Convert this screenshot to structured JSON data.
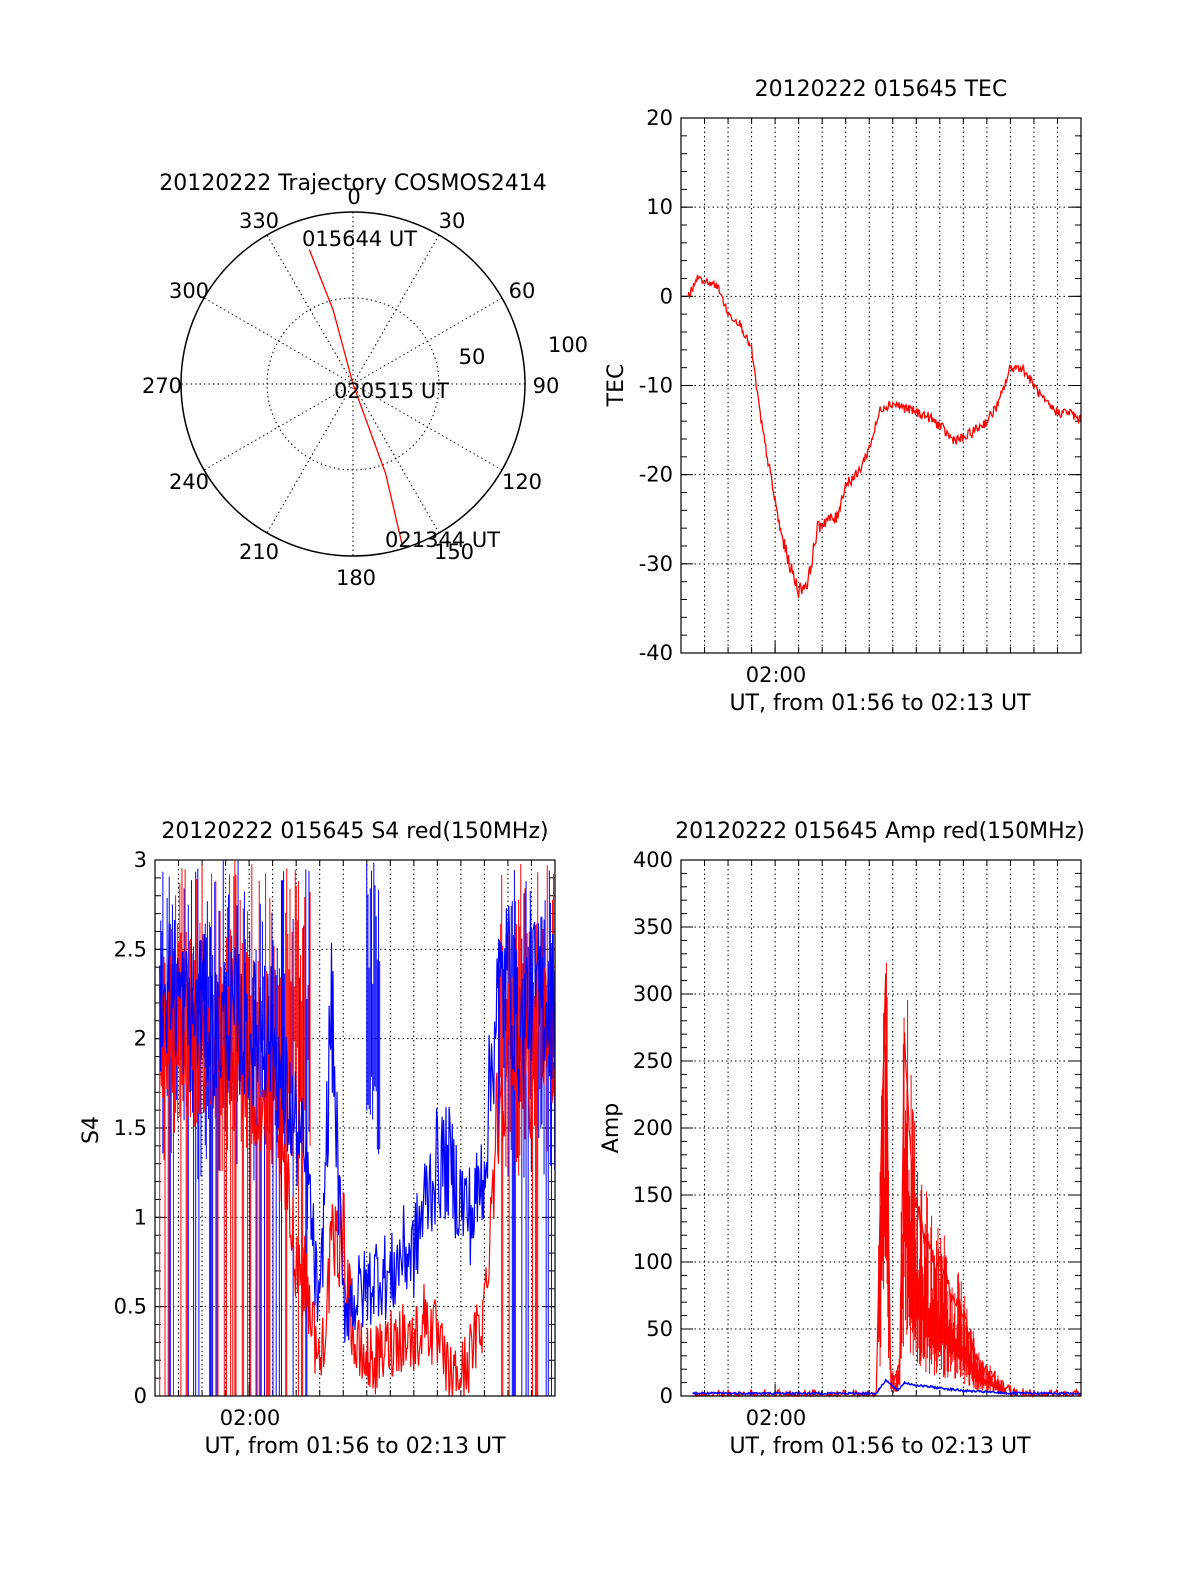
{
  "chart_data": [
    {
      "type": "polar",
      "title": "20120222 Trajectory COSMOS2414",
      "azimuth_labels": [
        "0",
        "30",
        "60",
        "90",
        "120",
        "150",
        "180",
        "210",
        "240",
        "270",
        "300",
        "330"
      ],
      "radial_labels": [
        "50",
        "100"
      ],
      "track": {
        "color": "#ff0000",
        "points": [
          {
            "az": 342,
            "r": 74
          },
          {
            "az": 345,
            "r": 40
          },
          {
            "az": 0,
            "r": 0
          },
          {
            "az": 160,
            "r": 50
          },
          {
            "az": 163,
            "r": 88
          }
        ]
      },
      "annotations": [
        "015644 UT",
        "020515 UT",
        "021344 UT"
      ]
    },
    {
      "type": "line",
      "title": "20120222 015645 TEC",
      "xlabel": "UT, from 01:56 to 02:13 UT",
      "ylabel": "TEC",
      "xlim": [
        0,
        17
      ],
      "ylim": [
        -40,
        20
      ],
      "yticks": [
        "20",
        "10",
        "0",
        "-10",
        "-20",
        "-30",
        "-40"
      ],
      "xtick_label": "02:00",
      "series": [
        {
          "color": "#ff0000",
          "x": [
            0.3,
            0.7,
            1.2,
            1.6,
            2.0,
            2.5,
            3.0,
            3.4,
            3.8,
            4.2,
            4.6,
            5.0,
            5.4,
            5.8,
            6.2,
            6.6,
            7.0,
            7.5,
            8.0,
            8.5,
            9.0,
            9.5,
            10.0,
            10.5,
            11.0,
            11.5,
            12.0,
            12.5,
            13.0,
            13.5,
            14.0,
            14.5,
            15.0,
            15.5,
            16.0,
            16.5,
            17.0
          ],
          "y": [
            0,
            2,
            1.5,
            1,
            -2,
            -3,
            -6,
            -14,
            -20,
            -26,
            -30,
            -33,
            -32,
            -26,
            -25,
            -25,
            -21,
            -20,
            -17,
            -12.5,
            -12,
            -12.5,
            -13,
            -13.5,
            -14.5,
            -16,
            -16,
            -15,
            -14,
            -12,
            -8,
            -8,
            -10,
            -12,
            -13,
            -13,
            -14
          ]
        }
      ]
    },
    {
      "type": "line",
      "title": "20120222 015645 S4 red(150MHz)",
      "xlabel": "UT, from 01:56 to 02:13 UT",
      "ylabel": "S4",
      "xlim": [
        0,
        17
      ],
      "ylim": [
        0,
        3
      ],
      "yticks": [
        "3",
        "2.5",
        "2",
        "1.5",
        "1",
        "0.5",
        "0"
      ],
      "xtick_label": "02:00",
      "series": [
        {
          "color": "#ff0000",
          "x": [
            0.2,
            0.8,
            1.5,
            2.0,
            2.5,
            3.0,
            3.5,
            4.0,
            4.5,
            5.0,
            5.5,
            6.0,
            6.5,
            7.0,
            7.5,
            8.0,
            8.5,
            9.0,
            9.5,
            10.0,
            10.5,
            11.0,
            11.5,
            12.0,
            12.5,
            13.0,
            13.5,
            14.0,
            14.5,
            15.0,
            15.5,
            16.0,
            16.5,
            17.0
          ],
          "y": [
            2.0,
            2.1,
            1.9,
            2.0,
            1.9,
            2.0,
            1.8,
            1.8,
            1.6,
            1.6,
            1.2,
            0.8,
            0.6,
            0.15,
            0.8,
            0.9,
            0.25,
            0.2,
            0.2,
            0.3,
            0.35,
            0.3,
            0.45,
            0.3,
            0.1,
            0.12,
            0.25,
            0.5,
            1.5,
            2.0,
            2.0,
            1.8,
            2.0,
            2.0
          ]
        },
        {
          "color": "#0000ff",
          "x": [
            0.2,
            0.8,
            1.5,
            2.0,
            2.5,
            3.0,
            3.5,
            4.0,
            4.5,
            5.0,
            5.5,
            6.0,
            6.5,
            7.0,
            7.5,
            8.0,
            8.5,
            9.0,
            9.5,
            10.0,
            10.5,
            11.0,
            11.5,
            12.0,
            12.5,
            13.0,
            13.5,
            14.0,
            14.5,
            15.0,
            15.5,
            16.0,
            16.5,
            17.0
          ],
          "y": [
            2.2,
            2.3,
            2.1,
            2.2,
            2.0,
            2.1,
            2.1,
            2.0,
            2.1,
            2.0,
            1.7,
            1.5,
            1.2,
            0.4,
            2.2,
            0.5,
            0.55,
            0.6,
            0.7,
            0.65,
            0.8,
            0.8,
            1.1,
            1.3,
            1.3,
            1.1,
            1.0,
            1.3,
            2.2,
            2.4,
            2.0,
            2.3,
            2.2,
            2.2
          ]
        }
      ]
    },
    {
      "type": "line",
      "title": "20120222 015645 Amp red(150MHz)",
      "xlabel": "UT, from 01:56 to 02:13 UT",
      "ylabel": "Amp",
      "xlim": [
        0,
        17
      ],
      "ylim": [
        0,
        400
      ],
      "yticks": [
        "400",
        "350",
        "300",
        "250",
        "200",
        "150",
        "100",
        "50",
        "0"
      ],
      "xtick_label": "02:00",
      "series": [
        {
          "color": "#ff0000",
          "x": [
            0.5,
            8.3,
            8.5,
            8.7,
            8.9,
            9.1,
            9.3,
            9.5,
            9.7,
            9.9,
            10.2,
            10.5,
            10.8,
            11.1,
            11.4,
            11.7,
            12.0,
            12.3,
            12.6,
            13.0,
            13.3,
            13.6,
            14.0,
            14.5,
            15.0,
            17.0
          ],
          "y": [
            0,
            0,
            180,
            310,
            20,
            10,
            25,
            280,
            190,
            150,
            130,
            110,
            100,
            95,
            80,
            70,
            60,
            45,
            25,
            18,
            15,
            8,
            3,
            1,
            0,
            0
          ]
        },
        {
          "color": "#0000ff",
          "x": [
            0.5,
            4.0,
            8.3,
            8.7,
            9.2,
            9.5,
            10.0,
            11.0,
            12.0,
            13.0,
            14.0,
            15.0,
            17.0
          ],
          "y": [
            2,
            2,
            2,
            12,
            4,
            10,
            8,
            6,
            4,
            3,
            2,
            2,
            2
          ]
        }
      ]
    }
  ]
}
